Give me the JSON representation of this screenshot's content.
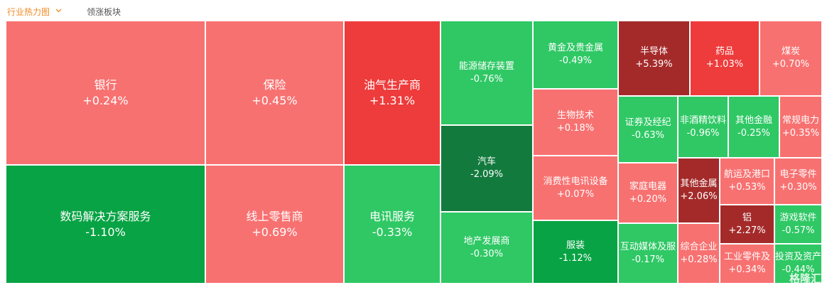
{
  "header": {
    "tabs": [
      "行业热力图",
      "领涨板块"
    ]
  },
  "tiles": [
    {
      "name": "银行",
      "change": "+0.24%",
      "color": "#f87171"
    },
    {
      "name": "保险",
      "change": "+0.45%",
      "color": "#f87171"
    },
    {
      "name": "油气生产商",
      "change": "+1.31%",
      "color": "#ee3b3b"
    },
    {
      "name": "数码解决方案服务",
      "change": "-1.10%",
      "color": "#08a344"
    },
    {
      "name": "线上零售商",
      "change": "+0.69%",
      "color": "#f87171"
    },
    {
      "name": "电讯服务",
      "change": "-0.33%",
      "color": "#2fc865"
    },
    {
      "name": "能源储存装置",
      "change": "-0.76%",
      "color": "#2fc865"
    },
    {
      "name": "汽车",
      "change": "-2.09%",
      "color": "#137a3e"
    },
    {
      "name": "地产发展商",
      "change": "-0.30%",
      "color": "#2fc865"
    },
    {
      "name": "黄金及贵金属",
      "change": "-0.49%",
      "color": "#2fc865"
    },
    {
      "name": "生物技术",
      "change": "+0.18%",
      "color": "#f87171"
    },
    {
      "name": "消费性电讯设备",
      "change": "+0.07%",
      "color": "#f87171"
    },
    {
      "name": "服装",
      "change": "-1.12%",
      "color": "#08a344"
    },
    {
      "name": "半导体",
      "change": "+5.39%",
      "color": "#a42a2a"
    },
    {
      "name": "药品",
      "change": "+1.03%",
      "color": "#ee3b3b"
    },
    {
      "name": "煤炭",
      "change": "+0.70%",
      "color": "#f87171"
    },
    {
      "name": "证券及经纪",
      "change": "-0.63%",
      "color": "#2fc865"
    },
    {
      "name": "非酒精饮料",
      "change": "-0.96%",
      "color": "#2fc865"
    },
    {
      "name": "其他金融",
      "change": "-0.25%",
      "color": "#2fc865"
    },
    {
      "name": "常规电力",
      "change": "+0.35%",
      "color": "#f87171"
    },
    {
      "name": "家庭电器",
      "change": "+0.20%",
      "color": "#f87171"
    },
    {
      "name": "其他金属",
      "change": "+2.06%",
      "color": "#a42a2a"
    },
    {
      "name": "航运及港口",
      "change": "+0.53%",
      "color": "#f87171"
    },
    {
      "name": "电子零件",
      "change": "+0.30%",
      "color": "#f87171"
    },
    {
      "name": "互动媒体及服",
      "change": "-0.17%",
      "color": "#2fc865"
    },
    {
      "name": "综合企业",
      "change": "+0.28%",
      "color": "#f87171"
    },
    {
      "name": "铝",
      "change": "+2.27%",
      "color": "#a42a2a"
    },
    {
      "name": "工业零件及",
      "change": "+0.34%",
      "color": "#f87171"
    },
    {
      "name": "游戏软件",
      "change": "-0.57%",
      "color": "#2fc865"
    },
    {
      "name": "投资及资产",
      "change": "-0.44%",
      "color": "#2fc865"
    }
  ],
  "watermark": "格隆汇"
}
